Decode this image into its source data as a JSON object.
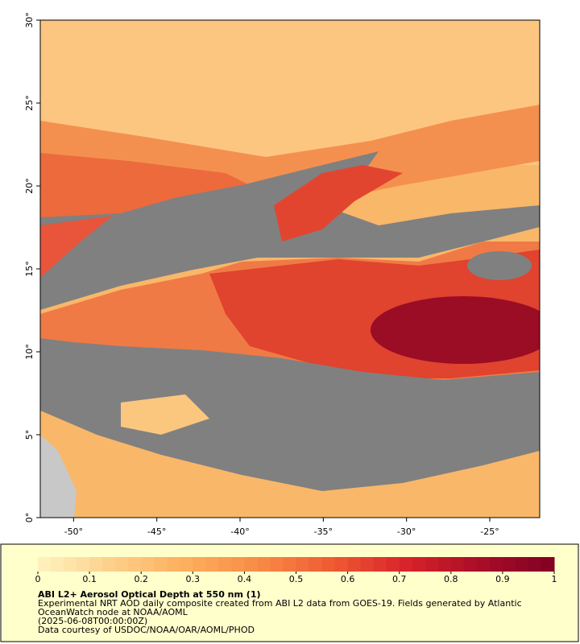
{
  "map": {
    "xlim": [
      -52,
      -22
    ],
    "ylim": [
      0,
      30
    ],
    "xticks": [
      {
        "value": -50,
        "label": "-50°"
      },
      {
        "value": -45,
        "label": "-45°"
      },
      {
        "value": -40,
        "label": "-40°"
      },
      {
        "value": -35,
        "label": "-35°"
      },
      {
        "value": -30,
        "label": "-30°"
      },
      {
        "value": -25,
        "label": "-25°"
      }
    ],
    "yticks": [
      {
        "value": 0,
        "label": "0°"
      },
      {
        "value": 5,
        "label": "5°"
      },
      {
        "value": 10,
        "label": "10°"
      },
      {
        "value": 15,
        "label": "15°"
      },
      {
        "value": 20,
        "label": "20°"
      },
      {
        "value": 25,
        "label": "25°"
      },
      {
        "value": 30,
        "label": "30°"
      }
    ]
  },
  "colorbar": {
    "range": [
      0,
      1
    ],
    "ticks": [
      0,
      0.1,
      0.2,
      0.3,
      0.4,
      0.5,
      0.6,
      0.7,
      0.8,
      0.9,
      1
    ],
    "colors": [
      "#fff3c0",
      "#fdd08a",
      "#fcaf5c",
      "#f88b45",
      "#ee5a33",
      "#d8222a",
      "#a90d26",
      "#800024"
    ]
  },
  "legend": {
    "title": "ABI L2+ Aerosol Optical Depth at 550 nm (1)",
    "lines": [
      "Experimental NRT AOD daily composite created from ABI L2 data from GOES-19. Fields generated by Atlantic",
      "OceanWatch node at NOAA/AOML",
      "(2025-06-08T00:00:00Z)",
      "Data courtesy of USDOC/NOAA/OAR/AOML/PHOD"
    ]
  }
}
